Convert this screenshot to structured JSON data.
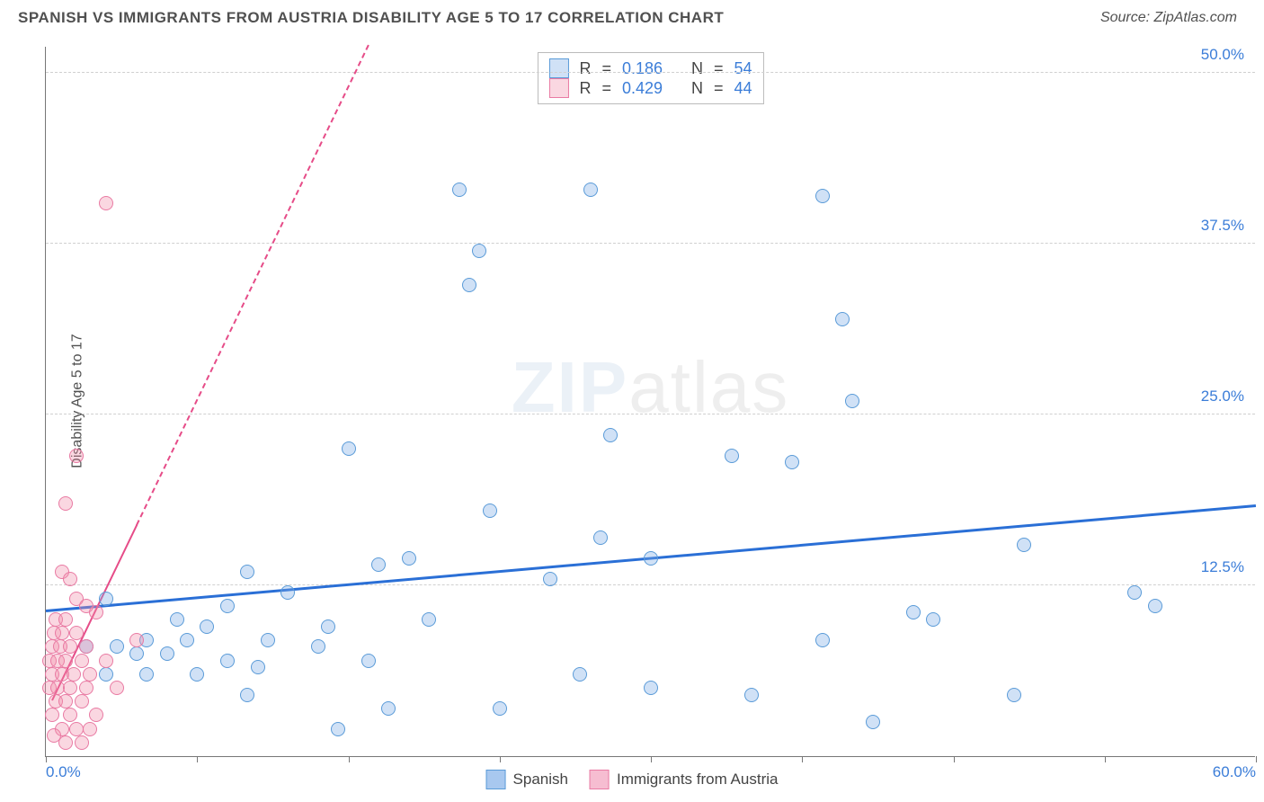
{
  "header": {
    "title": "SPANISH VS IMMIGRANTS FROM AUSTRIA DISABILITY AGE 5 TO 17 CORRELATION CHART",
    "source": "Source: ZipAtlas.com"
  },
  "chart": {
    "type": "scatter",
    "ylabel": "Disability Age 5 to 17",
    "xlim": [
      0,
      60
    ],
    "ylim": [
      0,
      52
    ],
    "xtick_positions": [
      0,
      7.5,
      15,
      22.5,
      30,
      37.5,
      45,
      52.5,
      60
    ],
    "xtick_labels": {
      "0": "0.0%",
      "60": "60.0%"
    },
    "ytick_positions": [
      12.5,
      25.0,
      37.5,
      50.0
    ],
    "ytick_labels": [
      "12.5%",
      "25.0%",
      "37.5%",
      "50.0%"
    ],
    "grid_color": "#d0d0d0",
    "background_color": "#ffffff",
    "axis_color": "#777777",
    "watermark": {
      "bold": "ZIP",
      "thin": "atlas"
    },
    "series": [
      {
        "name": "Spanish",
        "label": "Spanish",
        "color_fill": "rgba(120,170,230,0.35)",
        "color_stroke": "#5a9bd8",
        "marker_size": 16,
        "trend": {
          "color": "#2a6fd6",
          "width": 3,
          "x1": 0,
          "y1": 10.5,
          "x2": 60,
          "y2": 18.2,
          "solid_until_x": 60
        },
        "stats": {
          "R": "0.186",
          "N": "54"
        },
        "points": [
          [
            20.5,
            41.5
          ],
          [
            27.0,
            41.5
          ],
          [
            38.5,
            41.0
          ],
          [
            21.5,
            37.0
          ],
          [
            21.0,
            34.5
          ],
          [
            39.5,
            32.0
          ],
          [
            40.0,
            26.0
          ],
          [
            28.0,
            23.5
          ],
          [
            34.0,
            22.0
          ],
          [
            15.0,
            22.5
          ],
          [
            37.0,
            21.5
          ],
          [
            22.0,
            18.0
          ],
          [
            27.5,
            16.0
          ],
          [
            18.0,
            14.5
          ],
          [
            16.5,
            14.0
          ],
          [
            10.0,
            13.5
          ],
          [
            30.0,
            14.5
          ],
          [
            48.5,
            15.5
          ],
          [
            12.0,
            12.0
          ],
          [
            25.0,
            13.0
          ],
          [
            54.0,
            12.0
          ],
          [
            9.0,
            11.0
          ],
          [
            3.0,
            11.5
          ],
          [
            6.5,
            10.0
          ],
          [
            8.0,
            9.5
          ],
          [
            14.0,
            9.5
          ],
          [
            19.0,
            10.0
          ],
          [
            5.0,
            8.5
          ],
          [
            7.0,
            8.5
          ],
          [
            11.0,
            8.5
          ],
          [
            13.5,
            8.0
          ],
          [
            38.5,
            8.5
          ],
          [
            44.0,
            10.0
          ],
          [
            2.0,
            8.0
          ],
          [
            3.5,
            8.0
          ],
          [
            4.5,
            7.5
          ],
          [
            6.0,
            7.5
          ],
          [
            9.0,
            7.0
          ],
          [
            10.5,
            6.5
          ],
          [
            16.0,
            7.0
          ],
          [
            3.0,
            6.0
          ],
          [
            5.0,
            6.0
          ],
          [
            7.5,
            6.0
          ],
          [
            30.0,
            5.0
          ],
          [
            35.0,
            4.5
          ],
          [
            48.0,
            4.5
          ],
          [
            55.0,
            11.0
          ],
          [
            10.0,
            4.5
          ],
          [
            17.0,
            3.5
          ],
          [
            22.5,
            3.5
          ],
          [
            41.0,
            2.5
          ],
          [
            14.5,
            2.0
          ],
          [
            43.0,
            10.5
          ],
          [
            26.5,
            6.0
          ]
        ]
      },
      {
        "name": "Immigrants from Austria",
        "label": "Immigrants from Austria",
        "color_fill": "rgba(240,140,170,0.35)",
        "color_stroke": "#e97aa3",
        "marker_size": 16,
        "trend": {
          "color": "#e64c88",
          "width": 2,
          "x1": 0.3,
          "y1": 4.0,
          "x2": 16.0,
          "y2": 52.0,
          "solid_until_x": 4.5
        },
        "stats": {
          "R": "0.429",
          "N": "44"
        },
        "points": [
          [
            3.0,
            40.5
          ],
          [
            1.5,
            22.0
          ],
          [
            1.0,
            18.5
          ],
          [
            0.8,
            13.5
          ],
          [
            1.2,
            13.0
          ],
          [
            1.5,
            11.5
          ],
          [
            2.0,
            11.0
          ],
          [
            0.5,
            10.0
          ],
          [
            1.0,
            10.0
          ],
          [
            2.5,
            10.5
          ],
          [
            0.4,
            9.0
          ],
          [
            0.8,
            9.0
          ],
          [
            1.5,
            9.0
          ],
          [
            0.3,
            8.0
          ],
          [
            0.7,
            8.0
          ],
          [
            1.2,
            8.0
          ],
          [
            2.0,
            8.0
          ],
          [
            4.5,
            8.5
          ],
          [
            0.2,
            7.0
          ],
          [
            0.6,
            7.0
          ],
          [
            1.0,
            7.0
          ],
          [
            1.8,
            7.0
          ],
          [
            3.0,
            7.0
          ],
          [
            0.3,
            6.0
          ],
          [
            0.8,
            6.0
          ],
          [
            1.4,
            6.0
          ],
          [
            2.2,
            6.0
          ],
          [
            0.2,
            5.0
          ],
          [
            0.6,
            5.0
          ],
          [
            1.2,
            5.0
          ],
          [
            2.0,
            5.0
          ],
          [
            3.5,
            5.0
          ],
          [
            0.5,
            4.0
          ],
          [
            1.0,
            4.0
          ],
          [
            1.8,
            4.0
          ],
          [
            0.3,
            3.0
          ],
          [
            1.2,
            3.0
          ],
          [
            2.5,
            3.0
          ],
          [
            0.8,
            2.0
          ],
          [
            1.5,
            2.0
          ],
          [
            2.2,
            2.0
          ],
          [
            1.0,
            1.0
          ],
          [
            0.4,
            1.5
          ],
          [
            1.8,
            1.0
          ]
        ]
      }
    ],
    "stats_legend_labels": {
      "R": "R",
      "N": "N"
    },
    "bottom_legend": [
      {
        "swatch_fill": "#a8c8ef",
        "swatch_stroke": "#5a9bd8",
        "label": "Spanish"
      },
      {
        "swatch_fill": "#f6bdd1",
        "swatch_stroke": "#e97aa3",
        "label": "Immigrants from Austria"
      }
    ]
  }
}
